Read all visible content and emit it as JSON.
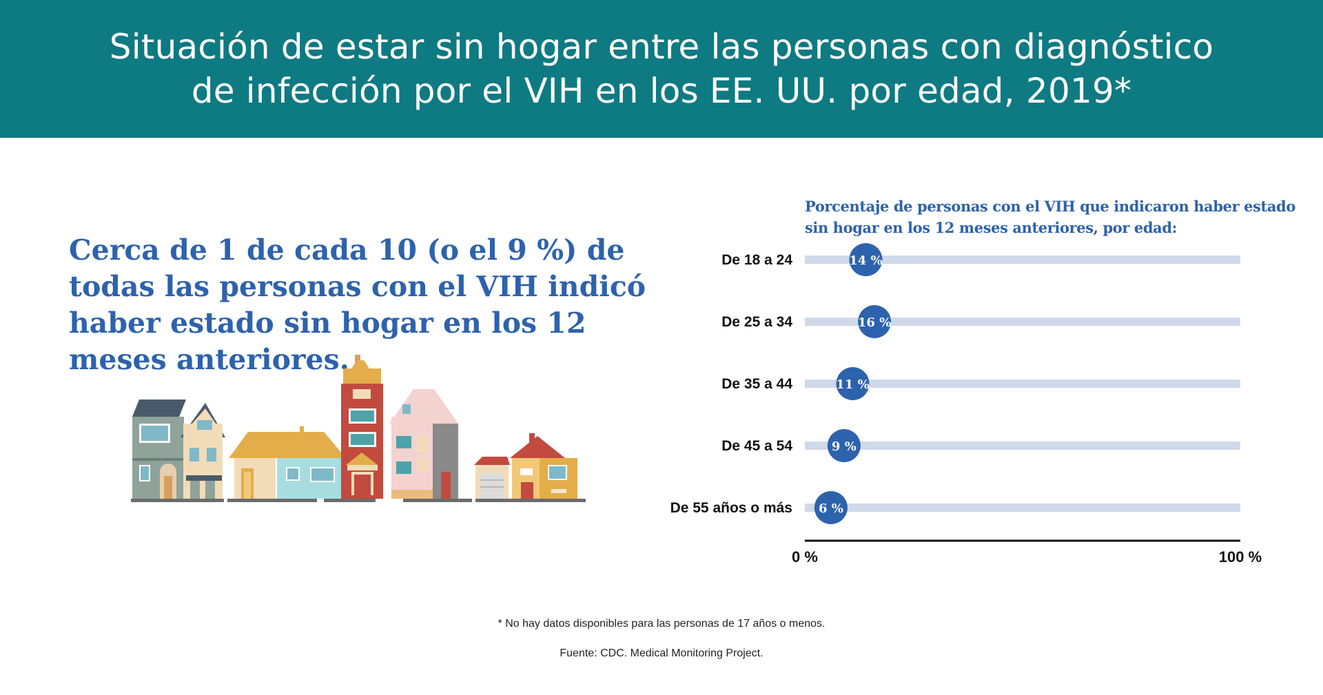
{
  "header": {
    "title_line1": "Situación de estar sin hogar entre las personas con diagnóstico",
    "title_line2": "de infección por el VIH en los EE. UU. por edad, 2019*"
  },
  "statement": {
    "line1": "Cerca de 1 de cada 10 (o el 9 %) de",
    "line2": "todas las personas con el VIH indicó",
    "line3": "haber estado sin hogar en los 12",
    "line4": "meses anteriores."
  },
  "chart_data": {
    "type": "bar",
    "title_line1": "Porcentaje de personas con el VIH que indicaron haber estado",
    "title_line2": "sin hogar en los 12 meses anteriores, por edad:",
    "categories": [
      "De 18 a 24",
      "De 25 a 34",
      "De 35 a 44",
      "De 45 a 54",
      "De 55 años o más"
    ],
    "values": [
      14,
      16,
      11,
      9,
      6
    ],
    "value_labels": [
      "14 %",
      "16 %",
      "11 %",
      "9 %",
      "6 %"
    ],
    "xlim": [
      0,
      100
    ],
    "tick_labels": [
      "0 %",
      "100 %"
    ],
    "grid": false,
    "colors": {
      "marker": "#2d62ad",
      "track": "#cfd9ea",
      "axis": "#111111"
    }
  },
  "footnote": "* No hay datos disponibles para las personas de 17 años o menos.",
  "source": "Fuente: CDC. Medical Monitoring Project.",
  "colors": {
    "header_bg": "#0e7a82",
    "accent_blue": "#2d62ad"
  }
}
